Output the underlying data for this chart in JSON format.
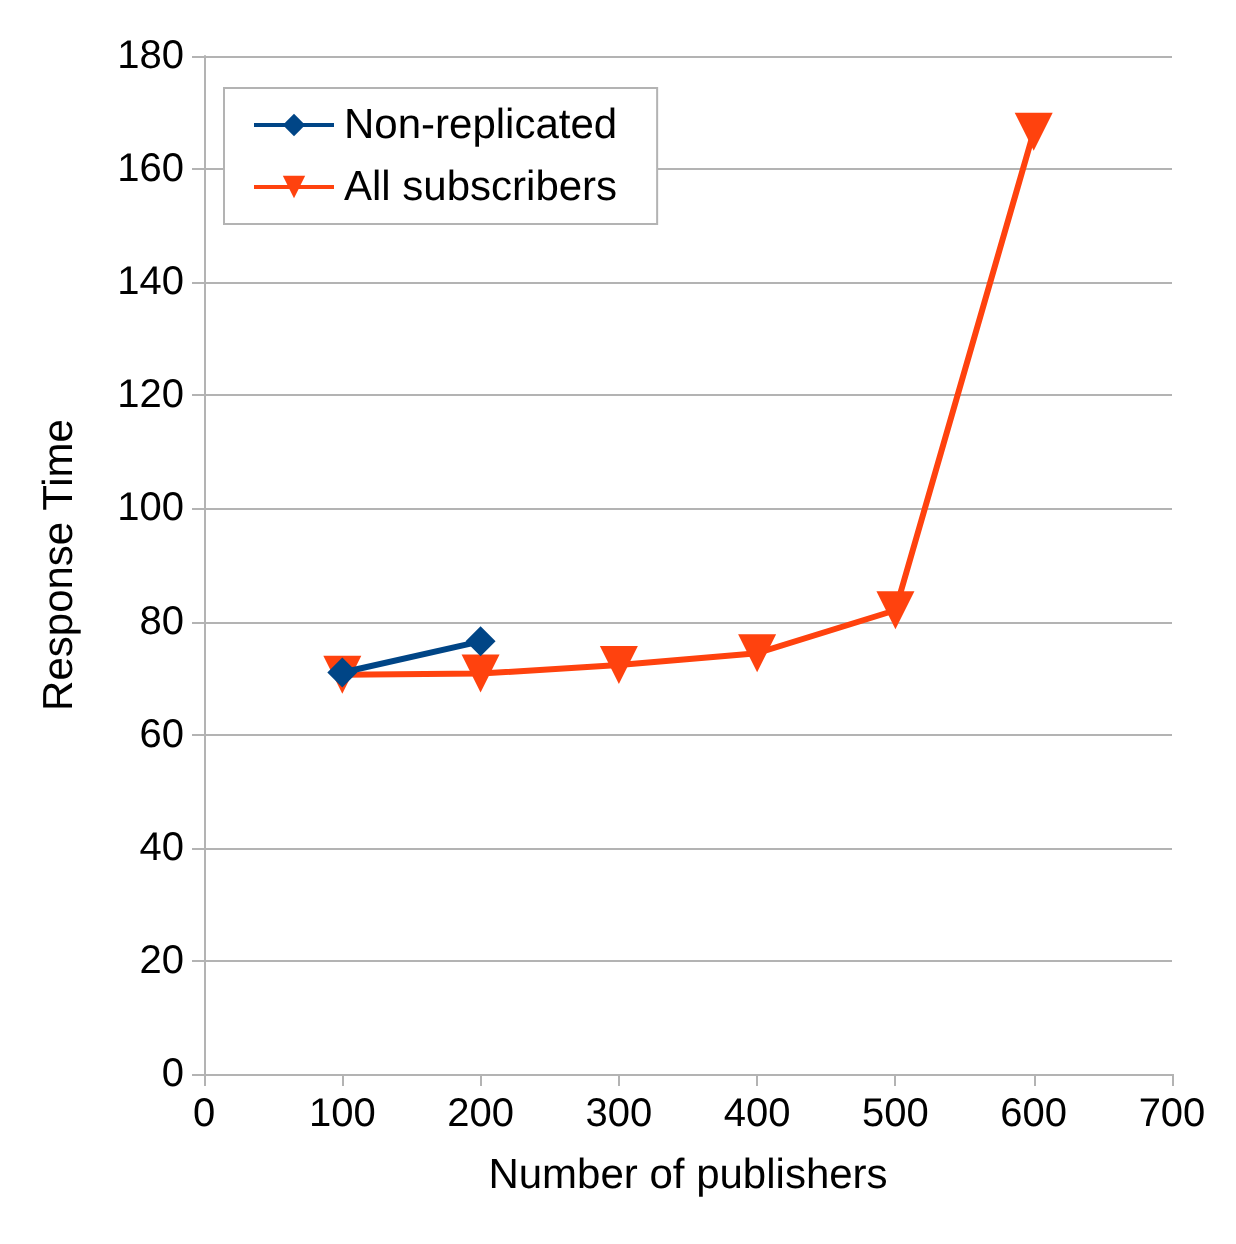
{
  "chart_data": {
    "type": "line",
    "xlabel": "Number of publishers",
    "ylabel": "Response Time",
    "xlim": [
      0,
      700
    ],
    "xticks": [
      0,
      100,
      200,
      300,
      400,
      500,
      600,
      700
    ],
    "ylim": [
      0,
      180
    ],
    "yticks": [
      0,
      20,
      40,
      60,
      80,
      100,
      120,
      140,
      160,
      180
    ],
    "grid": "y",
    "legend": "top left",
    "line_style": "solid",
    "series": [
      {
        "name": "Non-replicated",
        "color": "#004586",
        "marker": "diamond",
        "x": [
          100,
          200
        ],
        "values": [
          71,
          76.5
        ]
      },
      {
        "name": "All subscribers",
        "color": "#ff420e",
        "marker": "triangle",
        "x": [
          100,
          200,
          300,
          400,
          500,
          600
        ],
        "values": [
          70.6,
          70.8,
          72.3,
          74.4,
          82,
          166.6
        ]
      }
    ]
  }
}
